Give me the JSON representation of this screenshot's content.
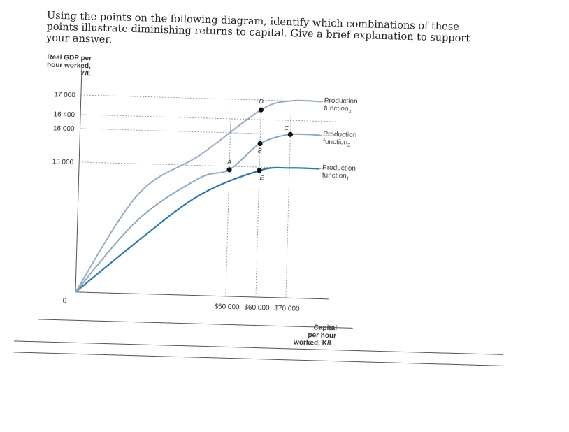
{
  "question": {
    "lines": [
      "Using the points on the following diagram, identify which combinations of these",
      "points illustrate diminishing returns to capital. Give a brief explanation to support",
      "your answer."
    ]
  },
  "colors": {
    "function1": "#2f78ab",
    "function2": "#8fa9c2",
    "function3": "#95adc4",
    "axis": "#555555",
    "guide": "#888888"
  },
  "chart_data": {
    "type": "line",
    "ylabel": [
      "Real GDP per",
      "hour worked,",
      "Y/L"
    ],
    "xlabel": [
      "Capital",
      "per hour",
      "worked, K/L"
    ],
    "origin_label": "0",
    "xlim": [
      0,
      80000
    ],
    "ylim": [
      0,
      17500
    ],
    "x_ticks": [
      {
        "value": 50000,
        "label": "$50 000"
      },
      {
        "value": 60000,
        "label": "$60 000"
      },
      {
        "value": 70000,
        "label": "$70 000"
      }
    ],
    "y_ticks": [
      {
        "value": 15000,
        "label": "15 000"
      },
      {
        "value": 16000,
        "label": "16 000"
      },
      {
        "value": 16400,
        "label": "16 400"
      },
      {
        "value": 17000,
        "label": "17 000"
      }
    ],
    "series": [
      {
        "name_main": "Production",
        "name_sub": "function",
        "subscript": "1",
        "color_key": "function1",
        "width": 2.2,
        "x": [
          0,
          20000,
          40000,
          60000,
          70000,
          80000
        ],
        "y": [
          0,
          6000,
          11500,
          14600,
          15000,
          15000
        ]
      },
      {
        "name_main": "Production",
        "name_sub": "function",
        "subscript": "2",
        "color_key": "function2",
        "width": 2,
        "x": [
          0,
          20000,
          40000,
          50000,
          60000,
          70000,
          80000
        ],
        "y": [
          0,
          8500,
          13500,
          14600,
          15700,
          16000,
          16000
        ]
      },
      {
        "name_main": "Production",
        "name_sub": "function",
        "subscript": "3",
        "color_key": "function3",
        "width": 2,
        "x": [
          0,
          20000,
          40000,
          60000,
          70000,
          80000
        ],
        "y": [
          0,
          11500,
          15300,
          16700,
          17000,
          17000
        ]
      }
    ],
    "points": [
      {
        "label": "A",
        "x": 50000,
        "y": 14600
      },
      {
        "label": "B",
        "x": 60000,
        "y": 15700
      },
      {
        "label": "C",
        "x": 70000,
        "y": 16000
      },
      {
        "label": "D",
        "x": 60000,
        "y": 16700
      },
      {
        "label": "E",
        "x": 60000,
        "y": 14600
      }
    ]
  }
}
